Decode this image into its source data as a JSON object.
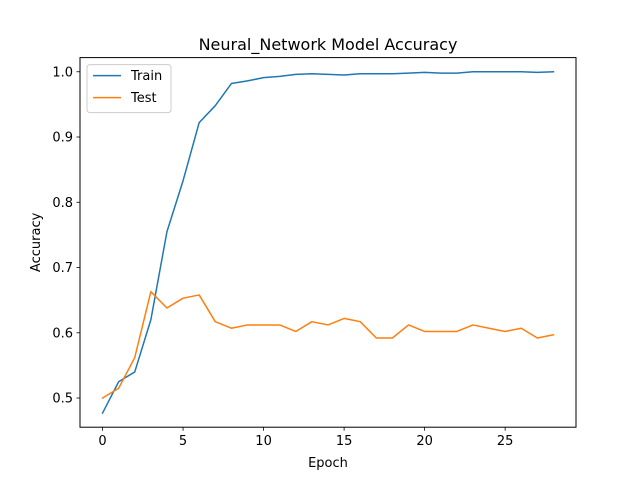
{
  "chart_data": {
    "type": "line",
    "title": "Neural_Network Model Accuracy",
    "xlabel": "Epoch",
    "ylabel": "Accuracy",
    "xlim": [
      -1.4,
      29.4
    ],
    "ylim": [
      0.4553,
      1.0217
    ],
    "xticks": [
      0,
      5,
      10,
      15,
      20,
      25
    ],
    "yticks": [
      0.5,
      0.6,
      0.7,
      0.8,
      0.9,
      1.0
    ],
    "xtick_labels": [
      "0",
      "5",
      "10",
      "15",
      "20",
      "25"
    ],
    "ytick_labels": [
      "0.5",
      "0.6",
      "0.7",
      "0.8",
      "0.9",
      "1.0"
    ],
    "grid": false,
    "legend_position": "top-left",
    "x": [
      0,
      1,
      2,
      3,
      4,
      5,
      6,
      7,
      8,
      9,
      10,
      11,
      12,
      13,
      14,
      15,
      16,
      17,
      18,
      19,
      20,
      21,
      22,
      23,
      24,
      25,
      26,
      27,
      28
    ],
    "series": [
      {
        "name": "Train",
        "color": "#1f77b4",
        "values": [
          0.477,
          0.525,
          0.54,
          0.62,
          0.755,
          0.833,
          0.922,
          0.948,
          0.982,
          0.986,
          0.991,
          0.993,
          0.996,
          0.997,
          0.996,
          0.995,
          0.997,
          0.997,
          0.997,
          0.998,
          0.999,
          0.998,
          0.998,
          1.0,
          1.0,
          1.0,
          1.0,
          0.999,
          1.0
        ]
      },
      {
        "name": "Test",
        "color": "#ff7f0e",
        "values": [
          0.5,
          0.515,
          0.562,
          0.663,
          0.638,
          0.653,
          0.658,
          0.617,
          0.607,
          0.612,
          0.612,
          0.612,
          0.602,
          0.617,
          0.612,
          0.622,
          0.617,
          0.592,
          0.592,
          0.612,
          0.602,
          0.602,
          0.602,
          0.612,
          0.607,
          0.602,
          0.607,
          0.592,
          0.597
        ]
      }
    ]
  }
}
